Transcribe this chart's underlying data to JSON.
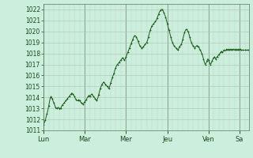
{
  "bg_color": "#cceedd",
  "plot_bg_color": "#cceedd",
  "line_color": "#1a5c1a",
  "grid_major_color": "#aabbaa",
  "grid_minor_color": "#bbccbb",
  "tick_label_color": "#1a4a1a",
  "ylim": [
    1011,
    1022.5
  ],
  "yticks": [
    1011,
    1012,
    1013,
    1014,
    1015,
    1016,
    1017,
    1018,
    1019,
    1020,
    1021,
    1022
  ],
  "xtick_labels": [
    "Lun",
    "Mar",
    "Mer",
    "Jeu",
    "Ven",
    "Sa"
  ],
  "day_positions": [
    0,
    48,
    96,
    144,
    192,
    228
  ],
  "total_points": 240,
  "data_y": [
    1011.5,
    1011.7,
    1011.9,
    1012.2,
    1012.5,
    1012.8,
    1013.2,
    1013.6,
    1014.0,
    1014.1,
    1013.9,
    1013.7,
    1013.5,
    1013.3,
    1013.1,
    1013.0,
    1013.0,
    1013.1,
    1013.0,
    1012.9,
    1013.0,
    1013.2,
    1013.3,
    1013.4,
    1013.5,
    1013.6,
    1013.7,
    1013.8,
    1013.9,
    1014.0,
    1014.1,
    1014.2,
    1014.3,
    1014.4,
    1014.3,
    1014.2,
    1014.1,
    1013.9,
    1013.8,
    1013.7,
    1013.7,
    1013.8,
    1013.7,
    1013.6,
    1013.5,
    1013.4,
    1013.4,
    1013.5,
    1013.6,
    1013.7,
    1013.8,
    1014.0,
    1014.1,
    1014.2,
    1014.1,
    1014.2,
    1014.3,
    1014.2,
    1014.1,
    1014.0,
    1013.9,
    1013.8,
    1013.7,
    1013.9,
    1014.2,
    1014.5,
    1014.8,
    1015.0,
    1015.2,
    1015.3,
    1015.4,
    1015.3,
    1015.2,
    1015.1,
    1015.0,
    1014.9,
    1014.8,
    1015.0,
    1015.3,
    1015.5,
    1015.8,
    1016.0,
    1016.2,
    1016.5,
    1016.7,
    1016.9,
    1017.0,
    1017.1,
    1017.2,
    1017.3,
    1017.4,
    1017.5,
    1017.6,
    1017.5,
    1017.4,
    1017.5,
    1017.7,
    1017.9,
    1018.1,
    1018.3,
    1018.5,
    1018.7,
    1018.9,
    1019.1,
    1019.3,
    1019.5,
    1019.6,
    1019.6,
    1019.5,
    1019.3,
    1019.1,
    1018.9,
    1018.7,
    1018.6,
    1018.5,
    1018.5,
    1018.6,
    1018.7,
    1018.8,
    1018.9,
    1019.0,
    1019.2,
    1019.5,
    1019.8,
    1020.1,
    1020.3,
    1020.5,
    1020.6,
    1020.7,
    1020.8,
    1020.9,
    1021.0,
    1021.2,
    1021.4,
    1021.6,
    1021.8,
    1021.9,
    1022.0,
    1022.0,
    1021.9,
    1021.7,
    1021.5,
    1021.3,
    1021.0,
    1020.7,
    1020.4,
    1020.1,
    1019.8,
    1019.5,
    1019.2,
    1019.0,
    1018.8,
    1018.7,
    1018.6,
    1018.5,
    1018.4,
    1018.3,
    1018.4,
    1018.6,
    1018.7,
    1018.8,
    1019.0,
    1019.3,
    1019.6,
    1019.9,
    1020.1,
    1020.2,
    1020.1,
    1020.0,
    1019.8,
    1019.5,
    1019.2,
    1019.0,
    1018.8,
    1018.7,
    1018.6,
    1018.5,
    1018.6,
    1018.7,
    1018.7,
    1018.6,
    1018.5,
    1018.3,
    1018.2,
    1018.0,
    1017.8,
    1017.5,
    1017.2,
    1017.0,
    1017.1,
    1017.3,
    1017.5,
    1017.4,
    1017.2,
    1017.0,
    1017.1,
    1017.3,
    1017.5,
    1017.6,
    1017.7,
    1017.5,
    1017.6,
    1017.7,
    1017.8,
    1017.9,
    1018.0,
    1018.1,
    1018.2,
    1018.1,
    1018.2,
    1018.3,
    1018.2,
    1018.3,
    1018.4,
    1018.3,
    1018.4,
    1018.3,
    1018.4,
    1018.3,
    1018.4,
    1018.3,
    1018.4,
    1018.3,
    1018.4,
    1018.3,
    1018.4,
    1018.3,
    1018.4,
    1018.3,
    1018.4,
    1018.3,
    1018.3,
    1018.3,
    1018.3,
    1018.3,
    1018.3,
    1018.3,
    1018.3,
    1018.3,
    1018.3
  ]
}
